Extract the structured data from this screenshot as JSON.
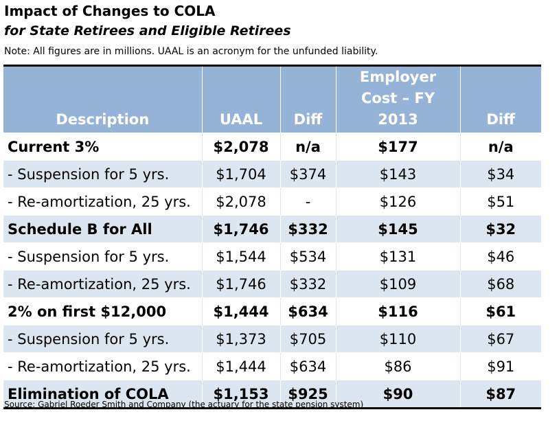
{
  "title": "Impact of Changes to COLA",
  "subtitle": "for State Retirees and Eligible Retirees",
  "note": "Note: All figures are in millions. UAAL is an acronym for the unfunded liability.",
  "table": {
    "headers": {
      "description": "Description",
      "uaal": "UAAL",
      "diff1": "Diff",
      "employer_line1": "Employer",
      "employer_line2": "Cost – FY 2013",
      "diff2": "Diff"
    },
    "rows": [
      {
        "description": "Current 3%",
        "uaal": "$2,078",
        "diff1": "n/a",
        "employer_cost": "$177",
        "diff2": "n/a",
        "bold": true
      },
      {
        "description": "- Suspension for 5 yrs.",
        "uaal": "$1,704",
        "diff1": "$374",
        "employer_cost": "$143",
        "diff2": "$34",
        "bold": false
      },
      {
        "description": "- Re-amortization, 25 yrs.",
        "uaal": "$2,078",
        "diff1": "-",
        "employer_cost": "$126",
        "diff2": "$51",
        "bold": false
      },
      {
        "description": "Schedule B for All",
        "uaal": "$1,746",
        "diff1": "$332",
        "employer_cost": "$145",
        "diff2": "$32",
        "bold": true
      },
      {
        "description": "- Suspension for 5 yrs.",
        "uaal": "$1,544",
        "diff1": "$534",
        "employer_cost": "$131",
        "diff2": "$46",
        "bold": false
      },
      {
        "description": "- Re-amortization, 25 yrs.",
        "uaal": "$1,746",
        "diff1": "$332",
        "employer_cost": "$109",
        "diff2": "$68",
        "bold": false
      },
      {
        "description": "2% on first $12,000",
        "uaal": "$1,444",
        "diff1": "$634",
        "employer_cost": "$116",
        "diff2": "$61",
        "bold": true
      },
      {
        "description": "- Suspension for 5 yrs.",
        "uaal": "$1,373",
        "diff1": "$705",
        "employer_cost": "$110",
        "diff2": "$67",
        "bold": false
      },
      {
        "description": "- Re-amortization, 25 yrs.",
        "uaal": "$1,444",
        "diff1": "$634",
        "employer_cost": "$86",
        "diff2": "$91",
        "bold": false
      },
      {
        "description": "Elimination of COLA",
        "uaal": "$1,153",
        "diff1": "$925",
        "employer_cost": "$90",
        "diff2": "$87",
        "bold": true
      }
    ]
  },
  "source": "Source: Gabriel Roeder Smith and Company (the actuary for the state pension system)",
  "colors": {
    "header_bg": "#95b3d7",
    "header_text": "#ffffff",
    "band_row_bg": "#dce6f1",
    "rule": "#000000"
  }
}
